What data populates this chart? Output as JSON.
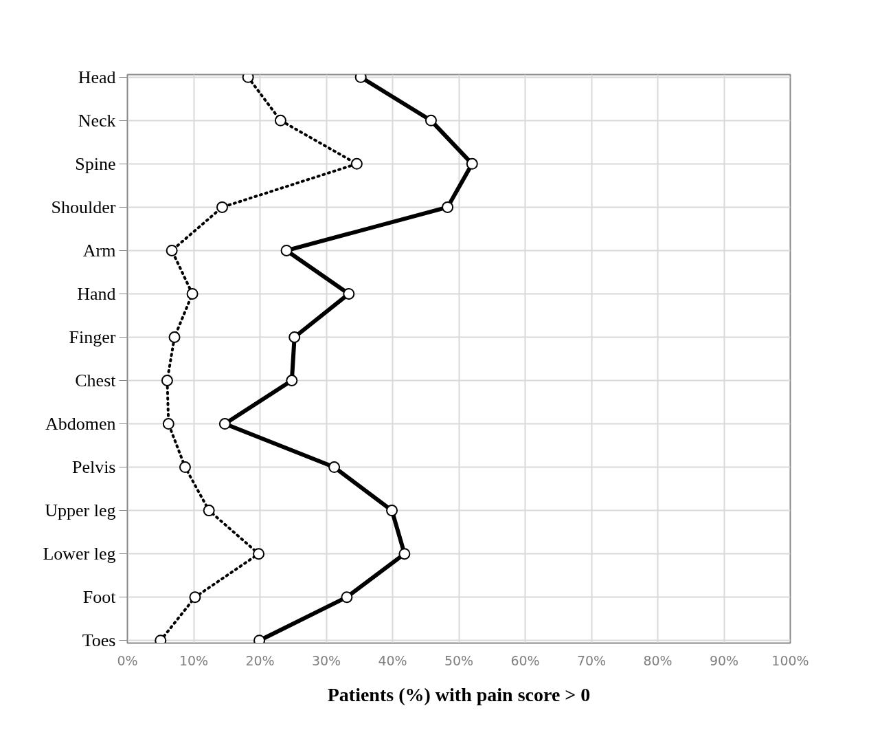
{
  "chart_data": {
    "type": "line",
    "orientation": "horizontal",
    "xlabel": "Patients (%) with pain score > 0",
    "categories": [
      "Head",
      "Neck",
      "Spine",
      "Shoulder",
      "Arm",
      "Hand",
      "Finger",
      "Chest",
      "Abdomen",
      "Pelvis",
      "Upper leg",
      "Lower leg",
      "Foot",
      "Toes"
    ],
    "series": [
      {
        "color": "#000000",
        "line_style": "solid",
        "values": [
          35.2,
          45.8,
          52.0,
          48.3,
          24.0,
          33.4,
          25.2,
          24.8,
          14.7,
          31.2,
          39.9,
          41.8,
          33.1,
          19.9
        ]
      },
      {
        "color": "#000000",
        "line_style": "dotted",
        "values": [
          18.2,
          23.1,
          34.6,
          14.3,
          6.7,
          9.8,
          7.1,
          6.0,
          6.2,
          8.7,
          12.3,
          19.8,
          10.2,
          5.0
        ]
      }
    ],
    "xlim": [
      0,
      100
    ],
    "xticks": [
      {
        "value": 0,
        "label": "0%"
      },
      {
        "value": 10,
        "label": "10%"
      },
      {
        "value": 20,
        "label": "20%"
      },
      {
        "value": 30,
        "label": "30%"
      },
      {
        "value": 40,
        "label": "40%"
      },
      {
        "value": 50,
        "label": "50%"
      },
      {
        "value": 60,
        "label": "60%"
      },
      {
        "value": 70,
        "label": "70%"
      },
      {
        "value": 80,
        "label": "80%"
      },
      {
        "value": 90,
        "label": "90%"
      },
      {
        "value": 100,
        "label": "100%"
      }
    ],
    "grid": true,
    "marker": "circle"
  }
}
